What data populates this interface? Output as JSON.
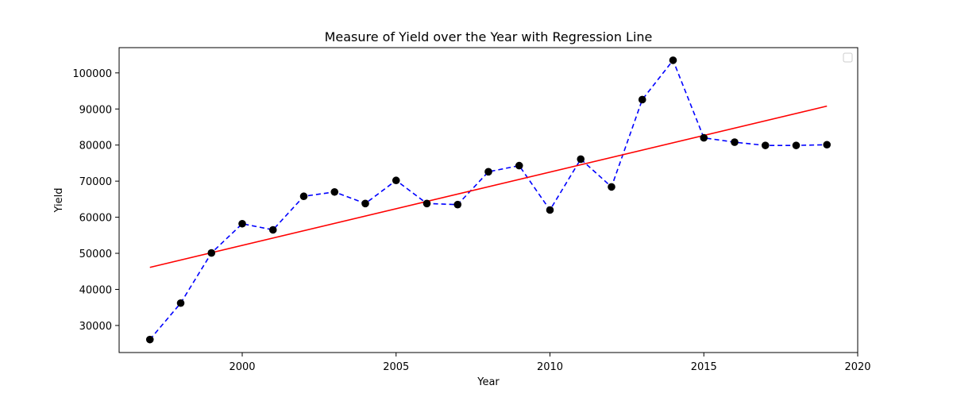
{
  "chart_data": {
    "type": "line",
    "title": "Measure of Yield over the Year with Regression Line",
    "xlabel": "Year",
    "ylabel": "Yield",
    "xlim": [
      1996,
      2020
    ],
    "ylim": [
      22500,
      107000
    ],
    "xticks": [
      2000,
      2005,
      2010,
      2015,
      2020
    ],
    "yticks": [
      30000,
      40000,
      50000,
      60000,
      70000,
      80000,
      90000,
      100000
    ],
    "grid": false,
    "legend": {
      "placement": "top-right",
      "entries": []
    },
    "series": [
      {
        "style": "dashed-line-with-markers",
        "line_color": "#0000ff",
        "marker_color": "#000000",
        "x": [
          1997,
          1998,
          1999,
          2000,
          2001,
          2002,
          2003,
          2004,
          2005,
          2006,
          2007,
          2008,
          2009,
          2010,
          2011,
          2012,
          2013,
          2014,
          2015,
          2016,
          2017,
          2018,
          2019
        ],
        "y": [
          26100,
          36200,
          50100,
          58200,
          56500,
          65800,
          67000,
          63800,
          70200,
          63800,
          63500,
          72600,
          74300,
          62000,
          76100,
          68400,
          92600,
          103500,
          82000,
          80800,
          79900,
          79900,
          80100
        ]
      },
      {
        "style": "solid-line",
        "line_color": "#ff0000",
        "x": [
          1997,
          2019
        ],
        "y": [
          46100,
          90800
        ]
      }
    ]
  }
}
